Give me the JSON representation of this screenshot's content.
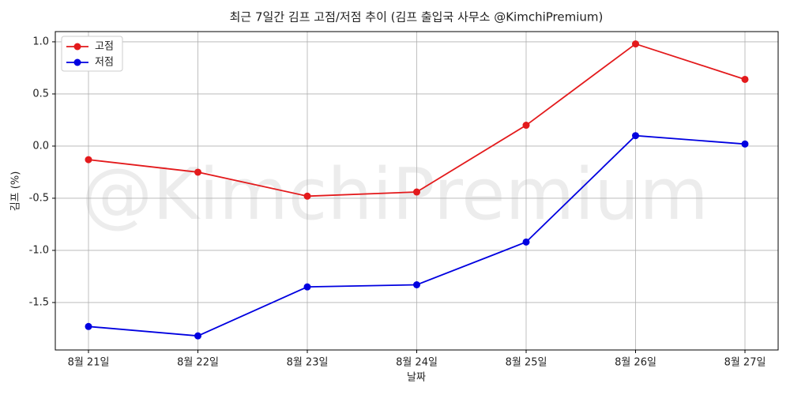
{
  "chart_data": {
    "type": "line",
    "title": "최근 7일간 김프 고점/저점 추이 (김프 출입국 사무소 @KimchiPremium)",
    "watermark": "@KimchiPremium",
    "x_label": "날짜",
    "y_label": "김프 (%)",
    "categories": [
      "8월 21일",
      "8월 22일",
      "8월 23일",
      "8월 24일",
      "8월 25일",
      "8월 26일",
      "8월 27일"
    ],
    "series": [
      {
        "name": "고점",
        "color": "#e31a1c",
        "values": [
          -0.13,
          -0.25,
          -0.48,
          -0.44,
          0.2,
          0.98,
          0.64
        ]
      },
      {
        "name": "저점",
        "color": "#0000e0",
        "values": [
          -1.73,
          -1.82,
          -1.35,
          -1.33,
          -0.92,
          0.1,
          0.02
        ]
      }
    ],
    "ylim": [
      -1.955,
      1.098
    ],
    "yticks": [
      {
        "value": 1,
        "label": "1.0"
      },
      0.5,
      {
        "value": 0,
        "label": "0.0"
      },
      -0.5,
      {
        "value": -1,
        "label": "-1.0"
      },
      -1.5
    ],
    "grid": true,
    "legend": "upper-left"
  }
}
